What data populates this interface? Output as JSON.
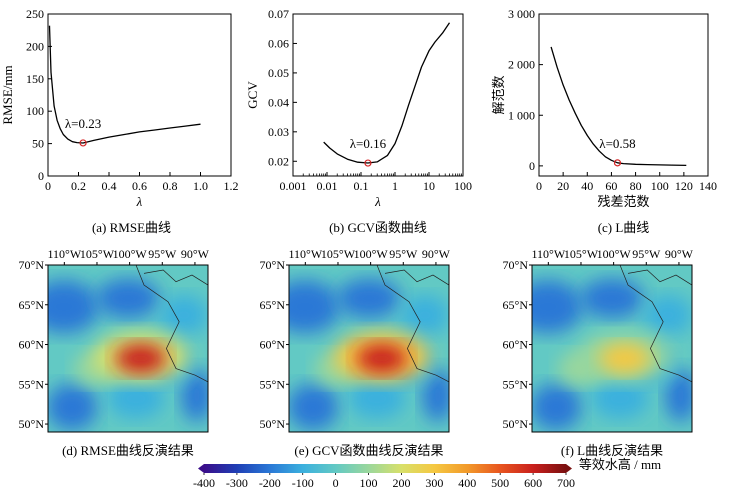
{
  "colors": {
    "curve": "#000000",
    "marker": "#d62728",
    "map_land_line": "#222222"
  },
  "chart_data": [
    {
      "type": "line",
      "title": "(a) RMSE曲线",
      "xlabel": "λ",
      "ylabel": "RMSE/mm",
      "xlim": [
        0,
        1.2
      ],
      "ylim": [
        0,
        250
      ],
      "xticks": [
        0,
        0.2,
        0.4,
        0.6,
        0.8,
        1.0,
        1.2
      ],
      "xtick_labels": [
        "0",
        "0.2",
        "0.4",
        "0.6",
        "0.8",
        "1.0",
        "1.2"
      ],
      "yticks": [
        0,
        50,
        100,
        150,
        200,
        250
      ],
      "ytick_labels": [
        "0",
        "50",
        "100",
        "150",
        "200",
        "250"
      ],
      "x": [
        0.01,
        0.02,
        0.04,
        0.06,
        0.08,
        0.1,
        0.13,
        0.16,
        0.19,
        0.23,
        0.3,
        0.4,
        0.5,
        0.6,
        0.7,
        0.8,
        0.9,
        1.0
      ],
      "y": [
        232,
        160,
        108,
        86,
        73,
        64,
        57,
        53,
        51.5,
        51,
        55,
        60,
        64,
        68,
        71,
        74,
        77,
        80
      ],
      "optimum": {
        "x": 0.23,
        "y": 51,
        "label": "λ=0.23"
      }
    },
    {
      "type": "line",
      "title": "(b) GCV函数曲线",
      "xlabel": "λ",
      "ylabel": "GCV",
      "xscale": "log",
      "xlim": [
        0.001,
        100
      ],
      "ylim": [
        0.015,
        0.07
      ],
      "xticks": [
        0.001,
        0.01,
        0.1,
        1,
        10,
        100
      ],
      "xtick_labels": [
        "0.001",
        "0.01",
        "0.1",
        "1",
        "10",
        "100"
      ],
      "yticks": [
        0.02,
        0.03,
        0.04,
        0.05,
        0.06,
        0.07
      ],
      "ytick_labels": [
        "0.02",
        "0.03",
        "0.04",
        "0.05",
        "0.06",
        "0.07"
      ],
      "x": [
        0.008,
        0.012,
        0.02,
        0.04,
        0.08,
        0.16,
        0.3,
        0.6,
        1.0,
        1.6,
        2.5,
        4,
        6,
        10,
        15,
        25,
        40
      ],
      "y": [
        0.0265,
        0.0245,
        0.0225,
        0.0207,
        0.0197,
        0.0194,
        0.0198,
        0.022,
        0.026,
        0.032,
        0.039,
        0.046,
        0.052,
        0.0575,
        0.0605,
        0.0635,
        0.067
      ],
      "optimum": {
        "x": 0.16,
        "y": 0.0194,
        "label": "λ=0.16"
      }
    },
    {
      "type": "line",
      "title": "(c) L曲线",
      "xlabel": "残差范数",
      "ylabel": "解范数",
      "xlim": [
        0,
        140
      ],
      "ylim": [
        -200,
        3000
      ],
      "xticks": [
        0,
        20,
        40,
        60,
        80,
        100,
        120,
        140
      ],
      "xtick_labels": [
        "0",
        "20",
        "40",
        "60",
        "80",
        "100",
        "120",
        "140"
      ],
      "yticks": [
        0,
        1000,
        2000,
        3000
      ],
      "ytick_labels": [
        "0",
        "1 000",
        "2 000",
        "3 000"
      ],
      "x": [
        10,
        15,
        20,
        25,
        30,
        35,
        40,
        45,
        50,
        55,
        60,
        65,
        70,
        80,
        90,
        100,
        110,
        122
      ],
      "y": [
        2350,
        1950,
        1600,
        1300,
        1040,
        800,
        600,
        430,
        290,
        180,
        110,
        60,
        45,
        32,
        25,
        20,
        15,
        10
      ],
      "optimum": {
        "x": 65,
        "y": 60,
        "label": "λ=0.58"
      }
    },
    {
      "type": "heatmap",
      "title": "(d) RMSE曲线反演结果",
      "lon_labels": [
        "110°W",
        "105°W",
        "100°W",
        "95°W",
        "90°W"
      ],
      "lat_labels": [
        "70°N",
        "65°N",
        "60°N",
        "55°N",
        "50°N"
      ],
      "peak": {
        "lon": "100°W",
        "lat": "57.5°N",
        "value": 550
      }
    },
    {
      "type": "heatmap",
      "title": "(e) GCV函数曲线反演结果",
      "lon_labels": [
        "110°W",
        "105°W",
        "100°W",
        "95°W",
        "90°W"
      ],
      "lat_labels": [
        "70°N",
        "65°N",
        "60°N",
        "55°N",
        "50°N"
      ],
      "peak": {
        "lon": "100°W",
        "lat": "57.5°N",
        "value": 580
      }
    },
    {
      "type": "heatmap",
      "title": "(f) L曲线反演结果",
      "lon_labels": [
        "110°W",
        "105°W",
        "100°W",
        "95°W",
        "90°W"
      ],
      "lat_labels": [
        "70°N",
        "65°N",
        "60°N",
        "55°N",
        "50°N"
      ],
      "peak": {
        "lon": "100°W",
        "lat": "57.5°N",
        "value": 330
      }
    }
  ],
  "colorbar": {
    "label": "等效水高 / mm",
    "range": [
      -400,
      700
    ],
    "tick_labels": [
      "-400",
      "-300",
      "-200",
      "-100",
      "0",
      "100",
      "200",
      "300",
      "400",
      "500",
      "600",
      "700"
    ],
    "colors": [
      "#3a0e8a",
      "#1f3fb5",
      "#2a78d6",
      "#3bb0de",
      "#62c9c4",
      "#9ad79c",
      "#d8e06a",
      "#f5c842",
      "#f29a2a",
      "#e8551f",
      "#c9201d",
      "#7a1010"
    ]
  }
}
